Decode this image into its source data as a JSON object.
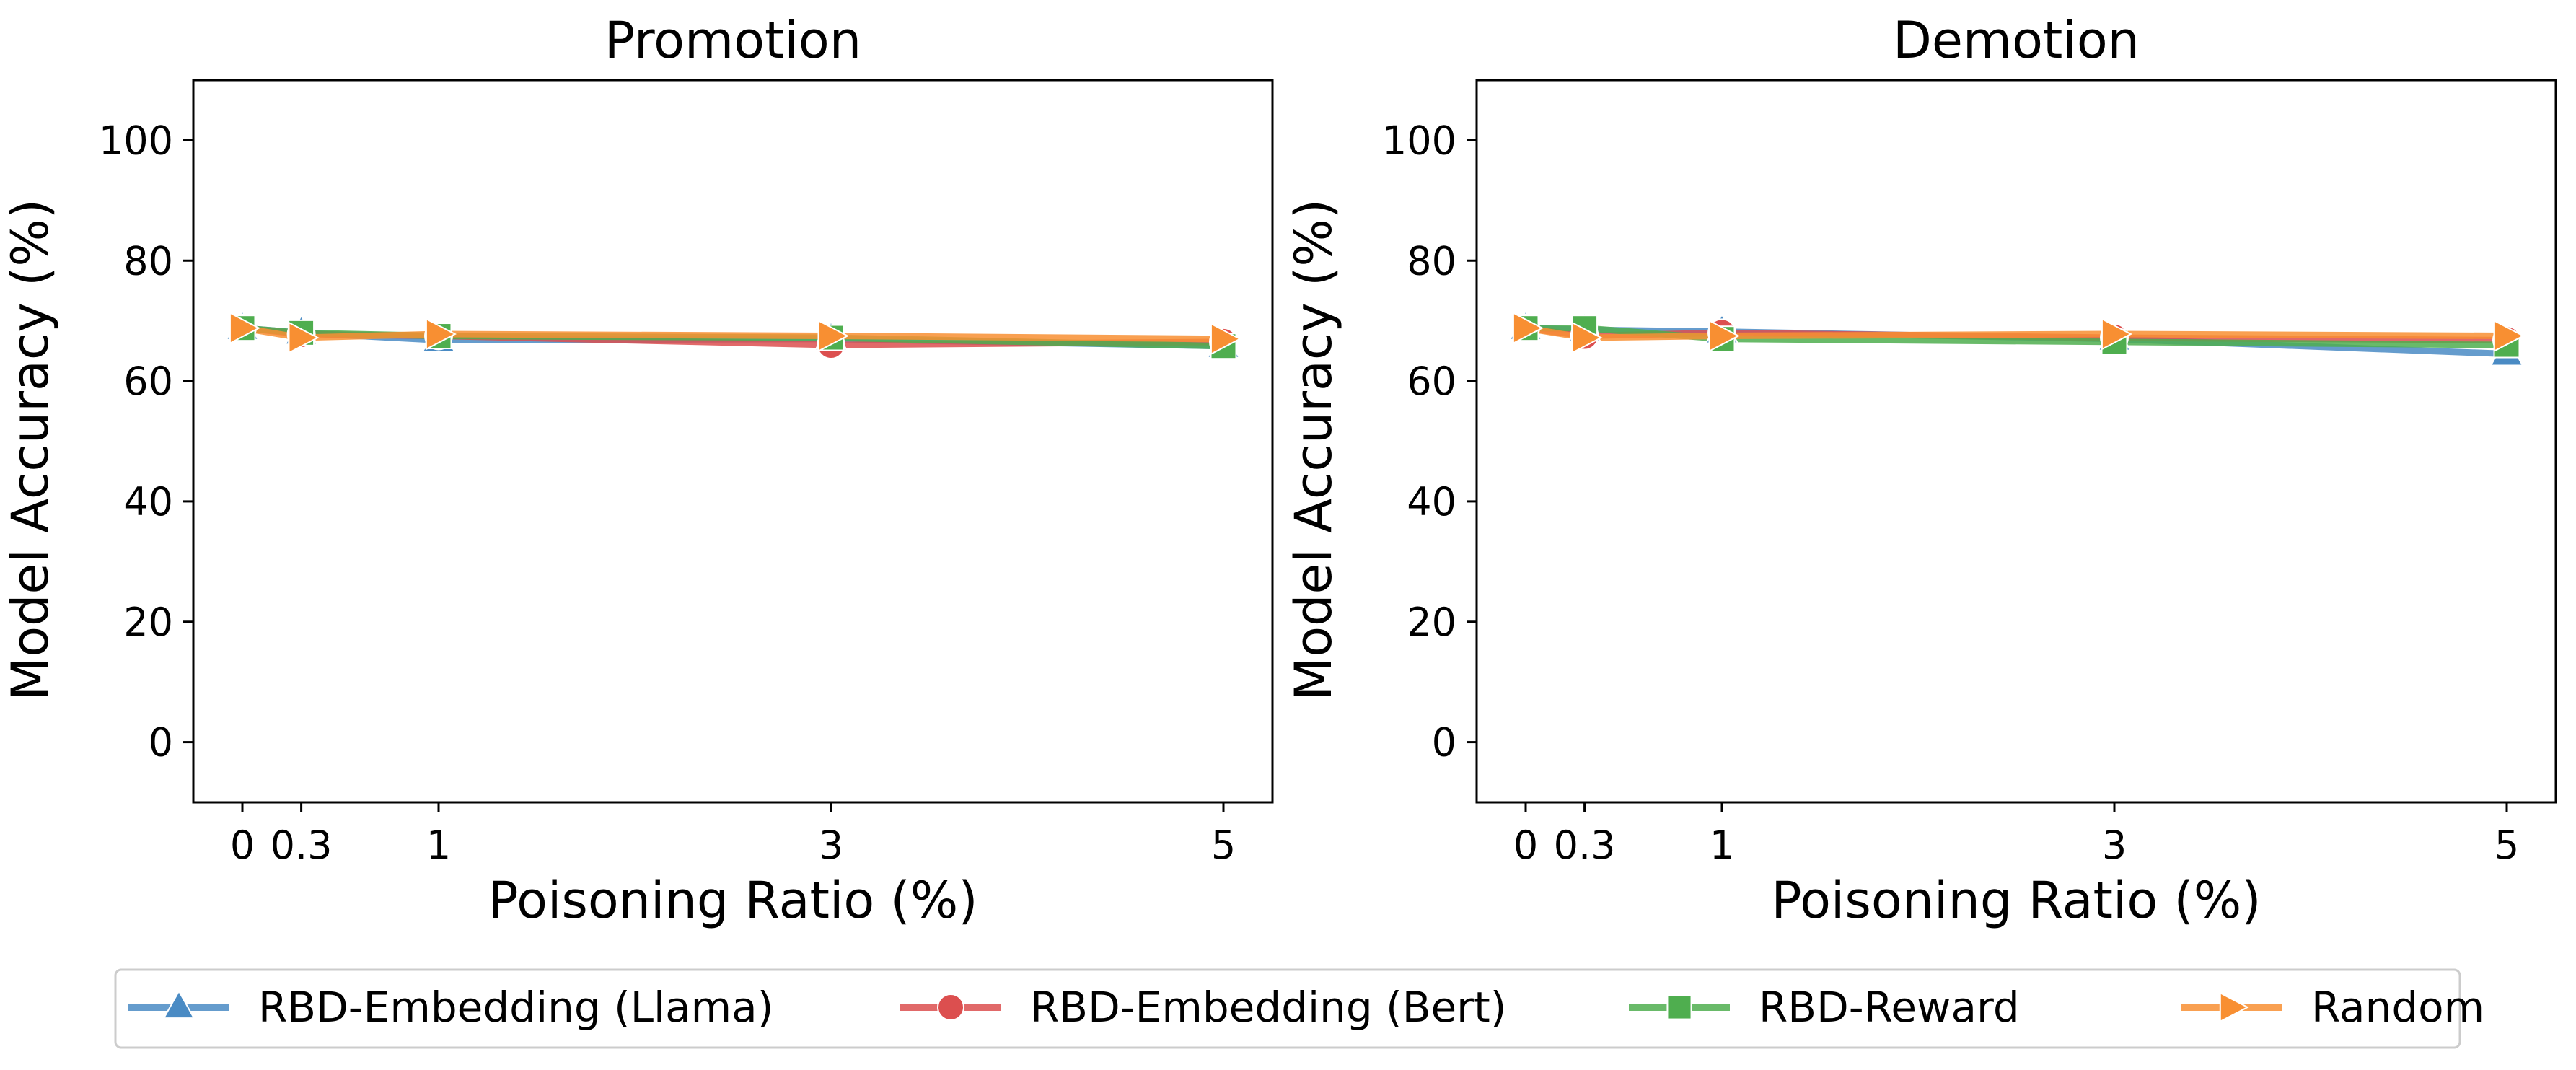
{
  "colors": {
    "llama": "#4a8bc4",
    "bert": "#dc4f4f",
    "reward": "#4fae4f",
    "random": "#f88f32",
    "axis": "#000000"
  },
  "chart_data": [
    {
      "type": "line",
      "title": "Promotion",
      "xlabel": "Poisoning Ratio (%)",
      "ylabel": "Model Accuracy (%)",
      "x": [
        0,
        0.3,
        1,
        3,
        5
      ],
      "xtick_labels": [
        "0",
        "0.3",
        "1",
        "3",
        "5"
      ],
      "ylim": [
        -10,
        110
      ],
      "xlim": [
        -0.25,
        5.25
      ],
      "yticks": [
        0,
        20,
        40,
        60,
        80,
        100
      ],
      "grid": false,
      "series": [
        {
          "name": "RBD-Embedding (Llama)",
          "key": "llama",
          "marker": "triangle",
          "values": [
            68.8,
            68.0,
            66.8,
            67.0,
            65.8
          ]
        },
        {
          "name": "RBD-Embedding (Bert)",
          "key": "bert",
          "marker": "circle",
          "values": [
            68.8,
            67.8,
            67.5,
            66.0,
            66.5
          ]
        },
        {
          "name": "RBD-Reward",
          "key": "reward",
          "marker": "square",
          "values": [
            68.8,
            68.0,
            67.5,
            67.2,
            65.8
          ]
        },
        {
          "name": "Random",
          "key": "random",
          "marker": "arrow",
          "values": [
            68.8,
            67.2,
            67.8,
            67.5,
            67.0
          ]
        }
      ]
    },
    {
      "type": "line",
      "title": "Demotion",
      "xlabel": "Poisoning Ratio (%)",
      "ylabel": "Model Accuracy (%)",
      "x": [
        0,
        0.3,
        1,
        3,
        5
      ],
      "xtick_labels": [
        "0",
        "0.3",
        "1",
        "3",
        "5"
      ],
      "ylim": [
        -10,
        110
      ],
      "xlim": [
        -0.25,
        5.25
      ],
      "yticks": [
        0,
        20,
        40,
        60,
        80,
        100
      ],
      "grid": false,
      "series": [
        {
          "name": "RBD-Embedding (Llama)",
          "key": "llama",
          "marker": "triangle",
          "values": [
            68.8,
            68.5,
            68.2,
            67.0,
            64.5
          ]
        },
        {
          "name": "RBD-Embedding (Bert)",
          "key": "bert",
          "marker": "circle",
          "values": [
            68.8,
            67.5,
            68.0,
            67.2,
            66.8
          ]
        },
        {
          "name": "RBD-Reward",
          "key": "reward",
          "marker": "square",
          "values": [
            68.8,
            68.8,
            67.0,
            66.5,
            66.0
          ]
        },
        {
          "name": "Random",
          "key": "random",
          "marker": "arrow",
          "values": [
            68.8,
            67.2,
            67.5,
            67.8,
            67.5
          ]
        }
      ]
    }
  ],
  "legend": {
    "position": "bottom",
    "items": [
      {
        "label": "RBD-Embedding (Llama)",
        "key": "llama",
        "marker": "triangle"
      },
      {
        "label": "RBD-Embedding (Bert)",
        "key": "bert",
        "marker": "circle"
      },
      {
        "label": "RBD-Reward",
        "key": "reward",
        "marker": "square"
      },
      {
        "label": "Random",
        "key": "random",
        "marker": "arrow"
      }
    ]
  }
}
